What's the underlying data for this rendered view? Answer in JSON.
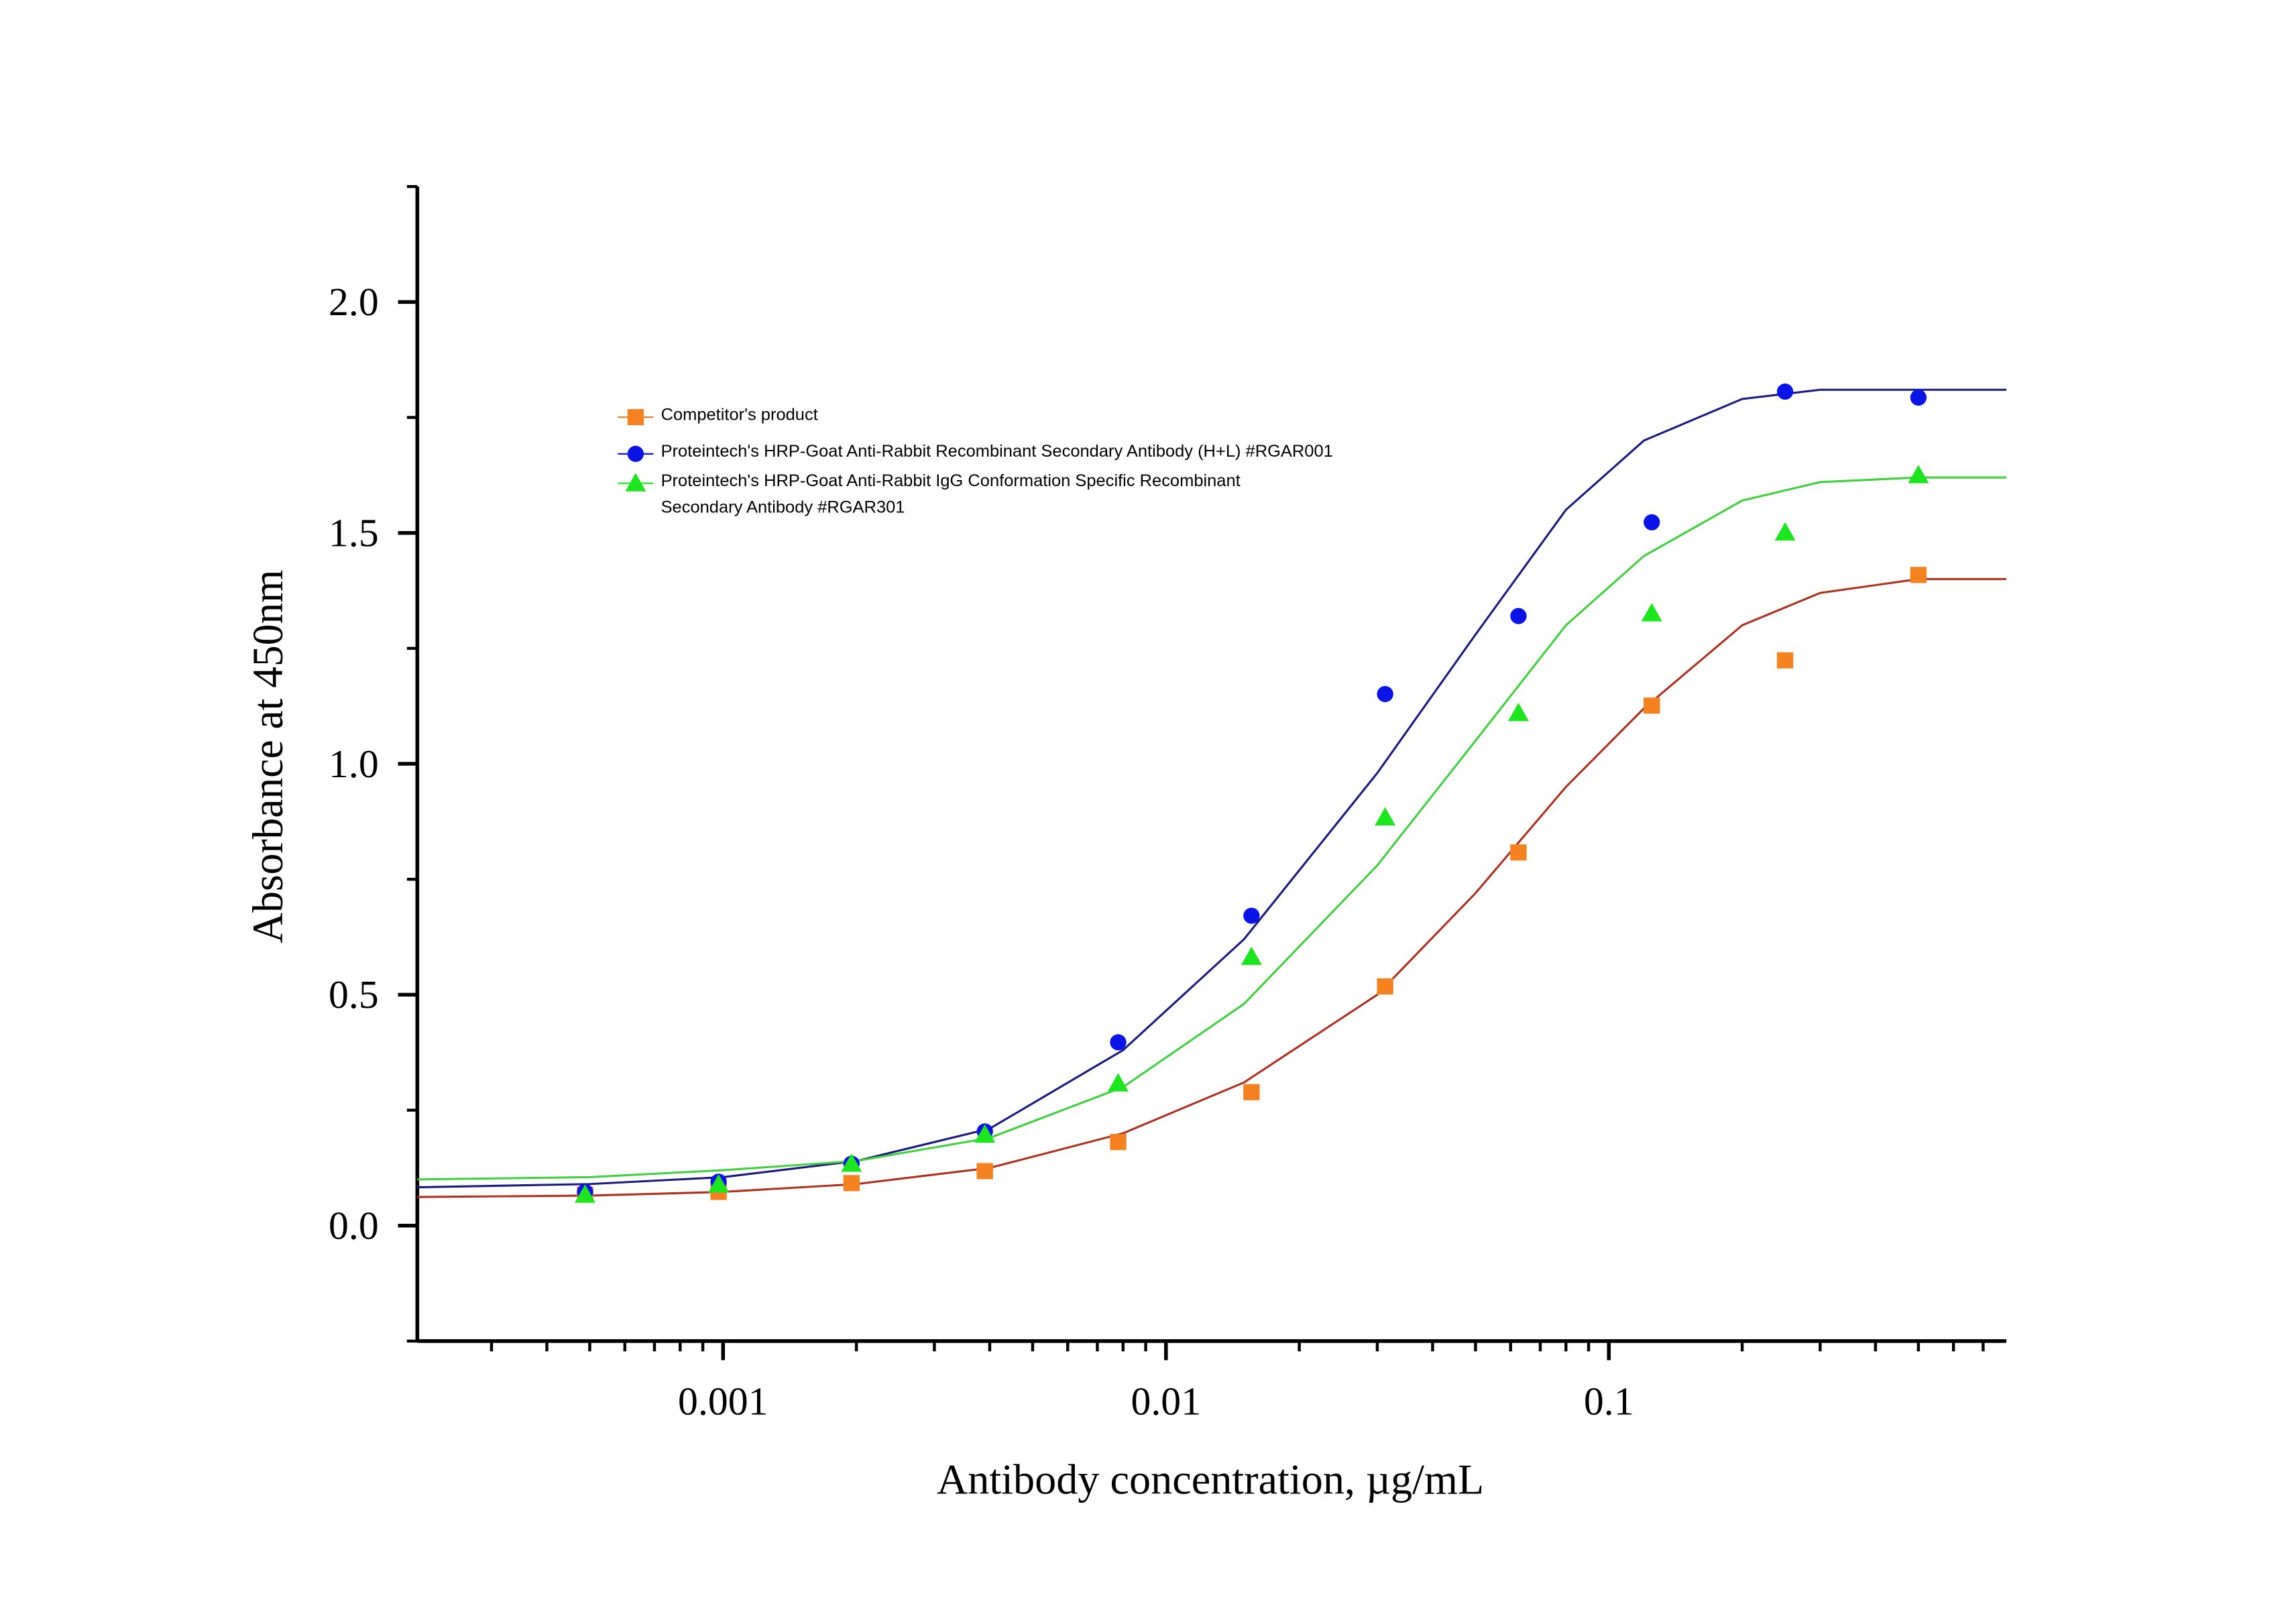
{
  "chart_data": {
    "type": "scatter",
    "xlabel": "Antibody concentration, µg/mL",
    "ylabel": "Absorbance at 450nm",
    "xscale": "log",
    "xlim": [
      0.000204,
      0.79
    ],
    "ylim": [
      -0.25,
      2.25
    ],
    "xticks": [
      0.001,
      0.01,
      0.1
    ],
    "xminorticks": [
      0.0003,
      0.0004,
      0.0005,
      0.0006,
      0.0007,
      0.0008,
      0.0009,
      0.002,
      0.003,
      0.004,
      0.005,
      0.006,
      0.007,
      0.008,
      0.009,
      0.02,
      0.03,
      0.04,
      0.05,
      0.06,
      0.07,
      0.08,
      0.09,
      0.2,
      0.3,
      0.4,
      0.5,
      0.6,
      0.7
    ],
    "yticks": [
      {
        "value": 0,
        "label": "0.0"
      },
      0.5,
      {
        "value": 1,
        "label": "1.0"
      },
      1.5,
      {
        "value": 2,
        "label": "2.0"
      }
    ],
    "yminorticks": [
      -0.25,
      0.25,
      0.75,
      1.25,
      1.75,
      2.25
    ],
    "x": [
      0.000488,
      0.000977,
      0.00195,
      0.0039,
      0.0078,
      0.0156,
      0.03125,
      0.0625,
      0.125,
      0.25,
      0.5
    ],
    "series": [
      {
        "name": "Competitor's product",
        "color": "#f58220",
        "marker": "square",
        "values": [
          0.067,
          0.073,
          0.092,
          0.118,
          0.181,
          0.289,
          0.518,
          0.808,
          1.126,
          1.224,
          1.409
        ]
      },
      {
        "name": "Proteintech's HRP-Goat Anti-Rabbit Recombinant Secondary Antibody (H+L) #RGAR001",
        "color": "#0a14e6",
        "marker": "circle",
        "values": [
          0.073,
          0.095,
          0.134,
          0.204,
          0.397,
          0.671,
          1.151,
          1.32,
          1.523,
          1.806,
          1.793
        ]
      },
      {
        "name": "Proteintech's HRP-Goat Anti-Rabbit IgG Conformation Specific Recombinant\nSecondary Antibody  #RGAR301",
        "color": "#1ee61e",
        "marker": "triangle",
        "values": [
          0.067,
          0.089,
          0.134,
          0.197,
          0.308,
          0.582,
          0.884,
          1.11,
          1.326,
          1.501,
          1.625
        ]
      }
    ],
    "fit_x": [
      0.000204,
      0.0005,
      0.001,
      0.002,
      0.004,
      0.008,
      0.015,
      0.03,
      0.05,
      0.08,
      0.12,
      0.2,
      0.3,
      0.5,
      0.79
    ],
    "fits": [
      {
        "color": "#b03020",
        "values": [
          0.062,
          0.065,
          0.073,
          0.09,
          0.125,
          0.2,
          0.31,
          0.5,
          0.72,
          0.95,
          1.12,
          1.3,
          1.37,
          1.4,
          1.4
        ]
      },
      {
        "color": "#1a1a80",
        "values": [
          0.083,
          0.09,
          0.105,
          0.14,
          0.21,
          0.38,
          0.62,
          0.98,
          1.28,
          1.55,
          1.7,
          1.79,
          1.81,
          1.81,
          1.81
        ]
      },
      {
        "color": "#40d040",
        "values": [
          0.1,
          0.105,
          0.12,
          0.14,
          0.19,
          0.3,
          0.48,
          0.78,
          1.05,
          1.3,
          1.45,
          1.57,
          1.61,
          1.62,
          1.62
        ]
      }
    ]
  }
}
